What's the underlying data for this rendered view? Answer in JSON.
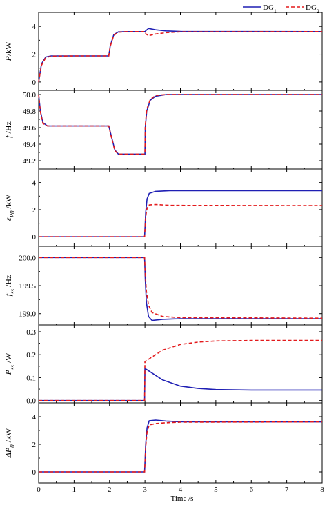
{
  "legend": {
    "items": [
      {
        "label": "DG",
        "sub": "1",
        "color": "#1f1fb4",
        "dash": "solid"
      },
      {
        "label": "DG",
        "sub": "2",
        "color": "#e31a1c",
        "dash": "dashed"
      }
    ],
    "placement": "top-right"
  },
  "x_axis": {
    "label": "Time /s",
    "ticks": [
      "0",
      "1",
      "2",
      "3",
      "4",
      "5",
      "6",
      "7",
      "8"
    ],
    "range": [
      0,
      8
    ]
  },
  "chart_data": [
    {
      "type": "line",
      "panel": "P",
      "ylabel": {
        "sym": "P",
        "sub": "",
        "unit": "/kW"
      },
      "ylim": [
        -0.6,
        5.0
      ],
      "yticks": [
        0,
        2,
        4
      ],
      "ytick_labels": [
        "0",
        "2",
        "4"
      ],
      "series": [
        {
          "name": "DG1",
          "points": [
            [
              0,
              0
            ],
            [
              0.08,
              1.3
            ],
            [
              0.2,
              1.8
            ],
            [
              0.35,
              1.88
            ],
            [
              1,
              1.88
            ],
            [
              1.98,
              1.88
            ],
            [
              2.02,
              2.6
            ],
            [
              2.12,
              3.4
            ],
            [
              2.25,
              3.6
            ],
            [
              2.5,
              3.62
            ],
            [
              3.0,
              3.62
            ],
            [
              3.03,
              3.7
            ],
            [
              3.1,
              3.85
            ],
            [
              3.3,
              3.75
            ],
            [
              3.6,
              3.67
            ],
            [
              4,
              3.63
            ],
            [
              8,
              3.62
            ]
          ]
        },
        {
          "name": "DG2",
          "points": [
            [
              0,
              0
            ],
            [
              0.08,
              1.2
            ],
            [
              0.2,
              1.75
            ],
            [
              0.35,
              1.86
            ],
            [
              1,
              1.88
            ],
            [
              1.98,
              1.88
            ],
            [
              2.02,
              2.55
            ],
            [
              2.12,
              3.35
            ],
            [
              2.25,
              3.58
            ],
            [
              2.5,
              3.62
            ],
            [
              3.0,
              3.62
            ],
            [
              3.03,
              3.45
            ],
            [
              3.1,
              3.33
            ],
            [
              3.3,
              3.45
            ],
            [
              3.6,
              3.55
            ],
            [
              4,
              3.6
            ],
            [
              8,
              3.62
            ]
          ]
        }
      ]
    },
    {
      "type": "line",
      "panel": "f",
      "ylabel": {
        "sym": "f",
        "sub": "",
        "unit": " /Hz"
      },
      "ylim": [
        49.1,
        50.05
      ],
      "yticks": [
        49.2,
        49.4,
        49.6,
        49.8,
        50.0
      ],
      "ytick_labels": [
        "49.2",
        "49.4",
        "49.6",
        "49.8",
        "50.0"
      ],
      "series": [
        {
          "name": "DG1",
          "points": [
            [
              0,
              50.0
            ],
            [
              0.05,
              49.8
            ],
            [
              0.12,
              49.66
            ],
            [
              0.25,
              49.62
            ],
            [
              1.98,
              49.62
            ],
            [
              2.05,
              49.5
            ],
            [
              2.15,
              49.33
            ],
            [
              2.25,
              49.28
            ],
            [
              3.0,
              49.28
            ],
            [
              3.01,
              49.6
            ],
            [
              3.05,
              49.8
            ],
            [
              3.15,
              49.93
            ],
            [
              3.3,
              49.98
            ],
            [
              3.6,
              50.0
            ],
            [
              8,
              50.0
            ]
          ]
        },
        {
          "name": "DG2",
          "points": [
            [
              0,
              50.0
            ],
            [
              0.05,
              49.79
            ],
            [
              0.12,
              49.65
            ],
            [
              0.25,
              49.62
            ],
            [
              1.98,
              49.62
            ],
            [
              2.05,
              49.49
            ],
            [
              2.15,
              49.32
            ],
            [
              2.25,
              49.28
            ],
            [
              3.0,
              49.28
            ],
            [
              3.01,
              49.62
            ],
            [
              3.05,
              49.82
            ],
            [
              3.15,
              49.94
            ],
            [
              3.3,
              49.99
            ],
            [
              3.6,
              50.0
            ],
            [
              8,
              50.0
            ]
          ]
        }
      ]
    },
    {
      "type": "line",
      "panel": "eP0",
      "ylabel": {
        "sym": "ε",
        "sub": "P0",
        "unit": " /kW"
      },
      "ylim": [
        -0.7,
        5.0
      ],
      "yticks": [
        0,
        2,
        4
      ],
      "ytick_labels": [
        "0",
        "2",
        "4"
      ],
      "series": [
        {
          "name": "DG1",
          "points": [
            [
              0,
              0
            ],
            [
              2.99,
              0
            ],
            [
              3.02,
              1.8
            ],
            [
              3.06,
              2.8
            ],
            [
              3.12,
              3.2
            ],
            [
              3.3,
              3.35
            ],
            [
              3.7,
              3.4
            ],
            [
              8,
              3.4
            ]
          ]
        },
        {
          "name": "DG2",
          "points": [
            [
              0,
              0
            ],
            [
              2.99,
              0
            ],
            [
              3.02,
              1.5
            ],
            [
              3.06,
              2.1
            ],
            [
              3.12,
              2.35
            ],
            [
              3.3,
              2.38
            ],
            [
              3.7,
              2.32
            ],
            [
              8,
              2.3
            ]
          ]
        }
      ]
    },
    {
      "type": "line",
      "panel": "fss",
      "ylabel": {
        "sym": "f",
        "sub": "ss",
        "unit": " /Hz"
      },
      "ylim": [
        198.8,
        200.2
      ],
      "yticks": [
        199.0,
        199.5,
        200.0
      ],
      "ytick_labels": [
        "199.0",
        "199.5",
        "200.0"
      ],
      "series": [
        {
          "name": "DG1",
          "points": [
            [
              0,
              200.0
            ],
            [
              2.99,
              200.0
            ],
            [
              3.01,
              199.6
            ],
            [
              3.04,
              199.2
            ],
            [
              3.1,
              198.95
            ],
            [
              3.2,
              198.88
            ],
            [
              3.5,
              198.9
            ],
            [
              4,
              198.91
            ],
            [
              8,
              198.91
            ]
          ]
        },
        {
          "name": "DG2",
          "points": [
            [
              0,
              200.0
            ],
            [
              2.99,
              200.0
            ],
            [
              3.01,
              199.7
            ],
            [
              3.04,
              199.4
            ],
            [
              3.1,
              199.15
            ],
            [
              3.2,
              199.02
            ],
            [
              3.5,
              198.95
            ],
            [
              4,
              198.93
            ],
            [
              8,
              198.92
            ]
          ]
        }
      ]
    },
    {
      "type": "line",
      "panel": "Pss",
      "ylabel": {
        "sym": "P",
        "sub": "ss",
        "unit": " /W"
      },
      "ylim": [
        -0.01,
        0.33
      ],
      "yticks": [
        0.0,
        0.1,
        0.2,
        0.3
      ],
      "ytick_labels": [
        "0.0",
        "0.1",
        "0.2",
        "0.3"
      ],
      "series": [
        {
          "name": "DG1",
          "points": [
            [
              0,
              0
            ],
            [
              2.99,
              0
            ],
            [
              3.0,
              0.14
            ],
            [
              3.2,
              0.12
            ],
            [
              3.5,
              0.09
            ],
            [
              4,
              0.063
            ],
            [
              4.5,
              0.053
            ],
            [
              5,
              0.048
            ],
            [
              6,
              0.046
            ],
            [
              8,
              0.046
            ]
          ]
        },
        {
          "name": "DG2",
          "points": [
            [
              0,
              0
            ],
            [
              2.99,
              0
            ],
            [
              3.0,
              0.17
            ],
            [
              3.2,
              0.19
            ],
            [
              3.5,
              0.22
            ],
            [
              4,
              0.245
            ],
            [
              4.5,
              0.255
            ],
            [
              5,
              0.26
            ],
            [
              6,
              0.262
            ],
            [
              8,
              0.262
            ]
          ]
        }
      ]
    },
    {
      "type": "line",
      "panel": "dP0",
      "ylabel": {
        "sym": "ΔP",
        "sub": "0",
        "unit": " /kW"
      },
      "ylim": [
        -0.8,
        5.0
      ],
      "yticks": [
        0,
        2,
        4
      ],
      "ytick_labels": [
        "0",
        "2",
        "4"
      ],
      "series": [
        {
          "name": "DG1",
          "points": [
            [
              0,
              0
            ],
            [
              2.99,
              0
            ],
            [
              3.02,
              2.0
            ],
            [
              3.06,
              3.2
            ],
            [
              3.12,
              3.7
            ],
            [
              3.3,
              3.75
            ],
            [
              3.6,
              3.68
            ],
            [
              4,
              3.63
            ],
            [
              8,
              3.62
            ]
          ]
        },
        {
          "name": "DG2",
          "points": [
            [
              0,
              0
            ],
            [
              2.99,
              0
            ],
            [
              3.02,
              1.8
            ],
            [
              3.06,
              2.9
            ],
            [
              3.12,
              3.4
            ],
            [
              3.3,
              3.5
            ],
            [
              3.6,
              3.56
            ],
            [
              4,
              3.6
            ],
            [
              8,
              3.62
            ]
          ]
        }
      ]
    }
  ]
}
